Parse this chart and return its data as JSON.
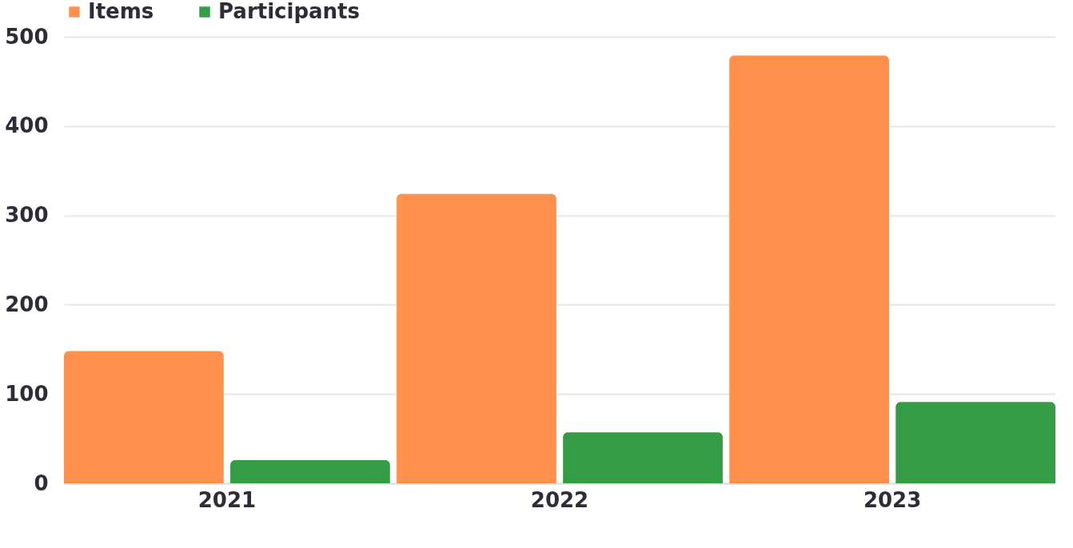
{
  "chart_data": {
    "type": "bar",
    "categories": [
      "2021",
      "2022",
      "2023"
    ],
    "series": [
      {
        "name": "Items",
        "color": "#ff914d",
        "values": [
          148,
          324,
          479
        ]
      },
      {
        "name": "Participants",
        "color": "#339c45",
        "values": [
          26,
          57,
          91
        ]
      }
    ],
    "ylim": [
      0,
      500
    ],
    "yticks": [
      0,
      100,
      200,
      300,
      400,
      500
    ],
    "grid": "y",
    "legend": "top"
  }
}
